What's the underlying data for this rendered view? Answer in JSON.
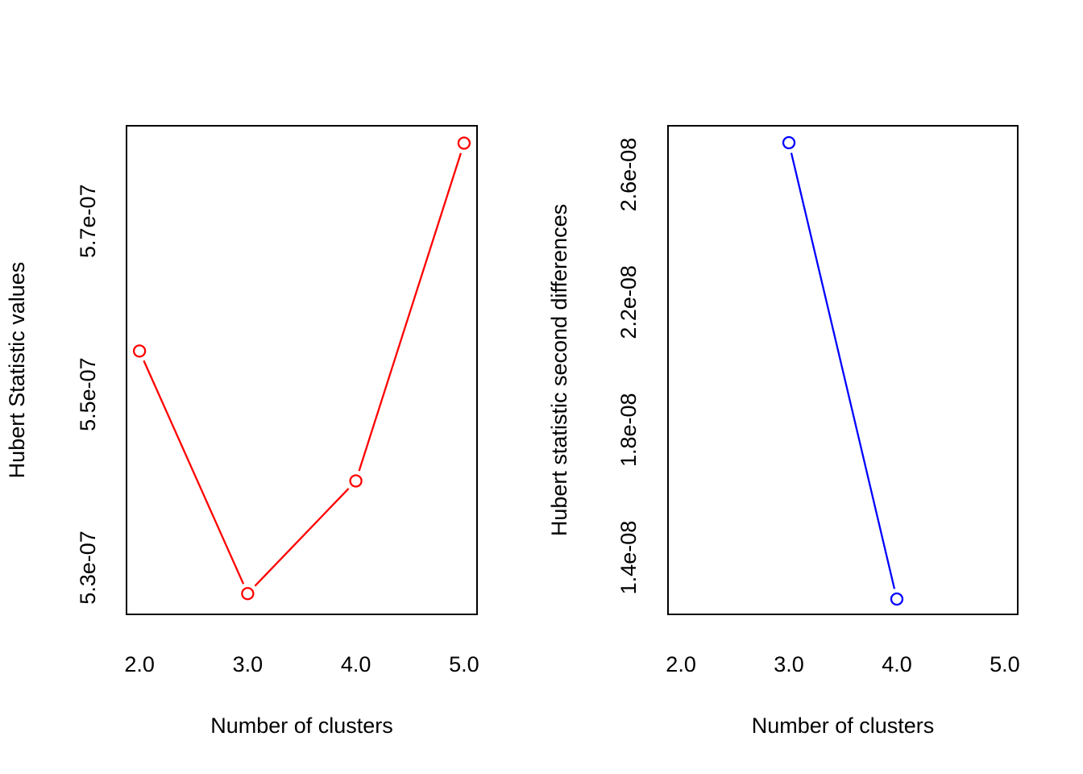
{
  "figure": {
    "background_color": "#ffffff",
    "axis_color": "#000000",
    "text_color": "#000000"
  },
  "chart_data": [
    {
      "type": "line",
      "panel": "left",
      "title": "",
      "xlabel": "Number of clusters",
      "ylabel": "Hubert Statistic values",
      "series": [
        {
          "name": "Hubert statistic values",
          "x": [
            2,
            3,
            4,
            5
          ],
          "y": [
            5.55e-07,
            5.27e-07,
            5.4e-07,
            5.79e-07
          ],
          "color": "#ff0000",
          "marker": "open-circle",
          "line_style": "solid"
        }
      ],
      "xlim": [
        1.88,
        5.12
      ],
      "ylim": [
        5.246e-07,
        5.81e-07
      ],
      "x_ticks": [
        2,
        3,
        4,
        5
      ],
      "x_tick_labels": [
        "2.0",
        "3.0",
        "4.0",
        "5.0"
      ],
      "y_ticks": [
        5.3e-07,
        5.5e-07,
        5.7e-07
      ],
      "y_tick_labels": [
        "5.3e-07",
        "5.5e-07",
        "5.7e-07"
      ],
      "grid": false,
      "legend": null
    },
    {
      "type": "line",
      "panel": "right",
      "title": "",
      "xlabel": "Number of clusters",
      "ylabel": "Hubert statistic second differences",
      "series": [
        {
          "name": "Hubert statistic second differences",
          "x": [
            3,
            4
          ],
          "y": [
            2.7e-08,
            1.27e-08
          ],
          "color": "#0000ff",
          "marker": "open-circle",
          "line_style": "solid"
        }
      ],
      "xlim": [
        1.88,
        5.12
      ],
      "ylim": [
        1.222e-08,
        2.753e-08
      ],
      "x_ticks": [
        2,
        3,
        4,
        5
      ],
      "x_tick_labels": [
        "2.0",
        "3.0",
        "4.0",
        "5.0"
      ],
      "y_ticks": [
        1.4e-08,
        1.8e-08,
        2.2e-08,
        2.6e-08
      ],
      "y_tick_labels": [
        "1.4e-08",
        "1.8e-08",
        "2.2e-08",
        "2.6e-08"
      ],
      "grid": false,
      "legend": null
    }
  ]
}
